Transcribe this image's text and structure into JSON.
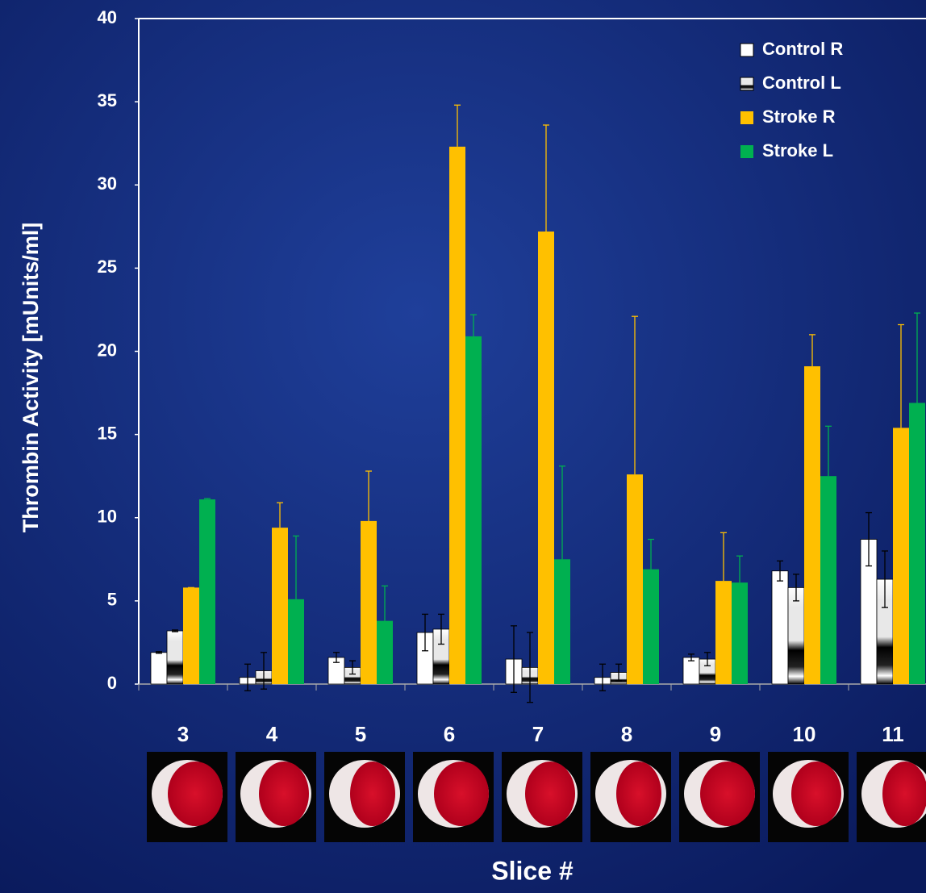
{
  "chart_data": {
    "type": "bar",
    "y_label": "Thrombin Activity [mUnits/ml]",
    "x_label": "Slice #",
    "categories": [
      "3",
      "4",
      "5",
      "6",
      "7",
      "8",
      "9",
      "10",
      "11"
    ],
    "ylim": [
      0,
      40
    ],
    "yticks": [
      0,
      5,
      10,
      15,
      20,
      25,
      30,
      35,
      40
    ],
    "grid": false,
    "legend": "top-right",
    "series": [
      {
        "name": "Control R",
        "color": "#ffffff",
        "error_color": "#000000",
        "values": [
          1.9,
          0.4,
          1.6,
          3.1,
          1.5,
          0.4,
          1.6,
          6.8,
          8.7
        ],
        "errors": [
          0.05,
          0.8,
          0.3,
          1.1,
          2.0,
          0.8,
          0.2,
          0.6,
          1.6
        ]
      },
      {
        "name": "Control L",
        "color": "#e8e8e8",
        "error_color": "#000000",
        "values": [
          3.2,
          0.8,
          1.0,
          3.3,
          1.0,
          0.7,
          1.5,
          5.8,
          6.3
        ],
        "errors": [
          0.05,
          1.1,
          0.4,
          0.9,
          2.1,
          0.5,
          0.4,
          0.8,
          1.7
        ]
      },
      {
        "name": "Stroke R",
        "color": "#ffc000",
        "error_color": "#ffc000",
        "values": [
          5.8,
          9.4,
          9.8,
          32.3,
          27.2,
          12.6,
          6.2,
          19.1,
          15.4
        ],
        "errors": [
          0,
          1.5,
          3.0,
          2.5,
          6.4,
          9.5,
          2.9,
          1.9,
          6.2
        ]
      },
      {
        "name": "Stroke L",
        "color": "#00b050",
        "error_color": "#00b050",
        "values": [
          11.1,
          5.1,
          3.8,
          20.9,
          7.5,
          6.9,
          6.1,
          12.5,
          16.9
        ],
        "errors": [
          0.05,
          3.8,
          2.1,
          1.3,
          5.6,
          1.8,
          1.6,
          3.0,
          5.4
        ]
      }
    ]
  }
}
